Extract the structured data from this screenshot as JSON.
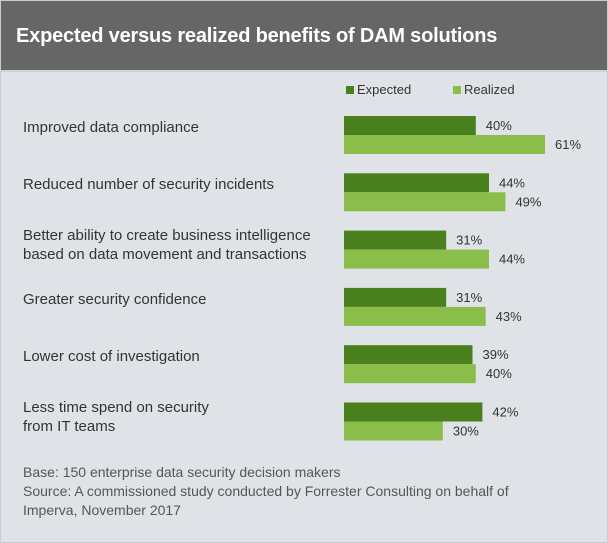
{
  "header": {
    "title": "Expected versus realized benefits of DAM solutions"
  },
  "colors": {
    "expected": "#4a7f1d",
    "realized": "#8bbd4b",
    "header_bg": "#666666",
    "background": "#dfe3e8"
  },
  "chart_data": {
    "type": "bar",
    "orientation": "horizontal",
    "title": "Expected versus realized benefits of DAM solutions",
    "xlabel": "",
    "ylabel": "",
    "xlim": [
      0,
      70
    ],
    "grid": false,
    "legend_position": "top-right",
    "value_format": "percent",
    "categories": [
      [
        "Improved data compliance"
      ],
      [
        "Reduced number of security incidents"
      ],
      [
        "Better ability to create business intelligence",
        "based on data movement and transactions"
      ],
      [
        "Greater security confidence"
      ],
      [
        "Lower cost of investigation"
      ],
      [
        "Less time spend on security",
        "from IT teams"
      ]
    ],
    "series": [
      {
        "name": "Expected",
        "color": "#4a7f1d",
        "values": [
          40,
          44,
          31,
          31,
          39,
          42
        ]
      },
      {
        "name": "Realized",
        "color": "#8bbd4b",
        "values": [
          61,
          49,
          44,
          43,
          40,
          30
        ]
      }
    ],
    "data_labels": {
      "Expected": [
        "40%",
        "44%",
        "31%",
        "31%",
        "39%",
        "42%"
      ],
      "Realized": [
        "61%",
        "49%",
        "44%",
        "43%",
        "40%",
        "30%"
      ]
    }
  },
  "footer": {
    "base": "Base: 150 enterprise data security decision makers",
    "source_line1": "Source: A commissioned study conducted by Forrester Consulting on behalf of",
    "source_line2": "Imperva, November 2017"
  }
}
